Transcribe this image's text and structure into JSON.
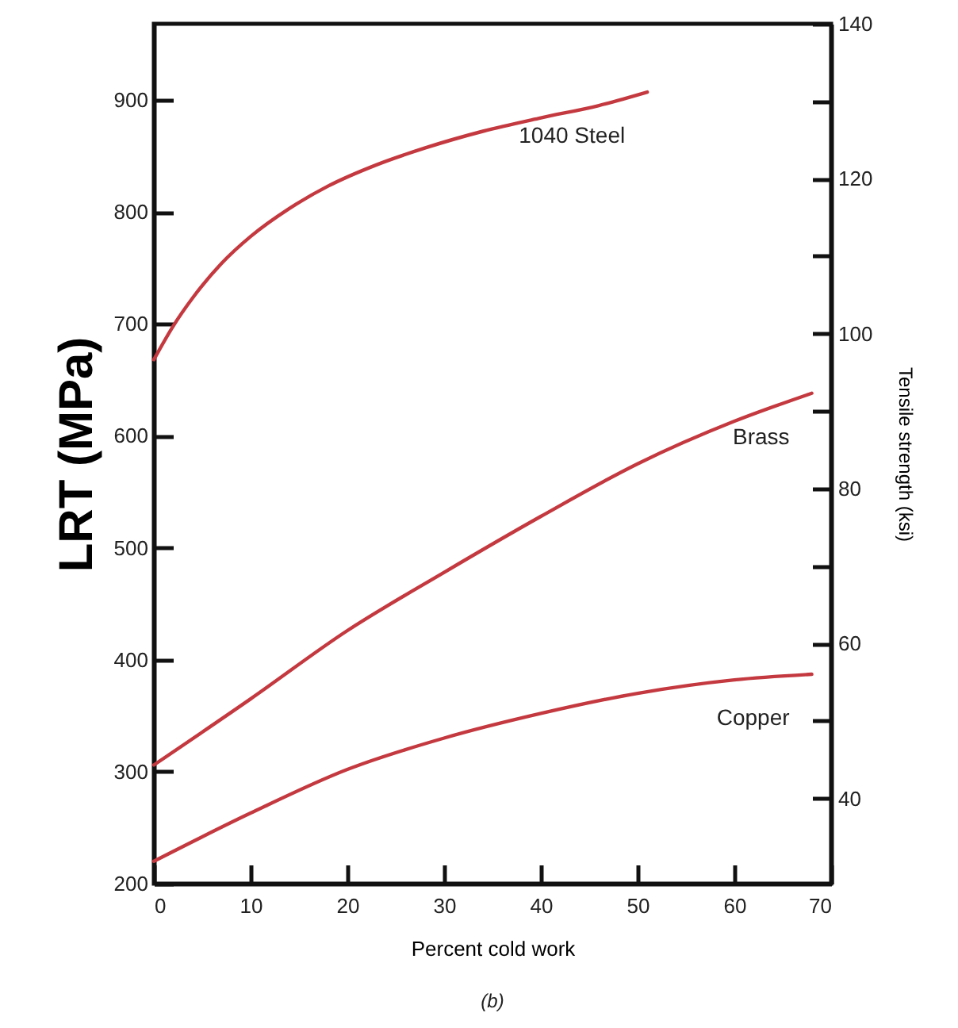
{
  "chart_data": {
    "type": "line",
    "xlabel": "Percent cold work",
    "ylabel": "LRT (MPa)",
    "y2label": "Tensile strength (ksi)",
    "annotations": [
      "(b)"
    ],
    "series": [
      {
        "name": "1040 Steel",
        "color": "#c4393f",
        "x": [
          0,
          2,
          4,
          7,
          10,
          14,
          18,
          23,
          28,
          34,
          40,
          46,
          51
        ],
        "values": [
          668,
          698,
          723,
          754,
          778,
          803,
          823,
          842,
          857,
          872,
          884,
          895,
          907
        ]
      },
      {
        "name": "Brass",
        "color": "#c4393f",
        "x": [
          0,
          10,
          20,
          30,
          40,
          50,
          60,
          68
        ],
        "values": [
          306,
          365,
          426,
          478,
          528,
          575,
          613,
          638
        ]
      },
      {
        "name": "Copper",
        "color": "#c4393f",
        "x": [
          0,
          10,
          20,
          30,
          40,
          50,
          60,
          68
        ],
        "values": [
          220,
          263,
          302,
          330,
          352,
          370,
          382,
          387
        ]
      }
    ],
    "xlim": [
      0,
      70
    ],
    "xticks": [
      0,
      10,
      20,
      30,
      40,
      50,
      60,
      70
    ],
    "ylim": [
      200,
      968
    ],
    "yticks": [
      200,
      300,
      400,
      500,
      600,
      700,
      800,
      900
    ],
    "y2lim": [
      29,
      140
    ],
    "y2ticks": [
      40,
      {
        "value": 50,
        "label": null
      },
      60,
      {
        "value": 70,
        "label": null
      },
      80,
      {
        "value": 90,
        "label": null
      },
      100,
      {
        "value": 110,
        "label": null
      },
      120,
      {
        "value": 130,
        "label": null
      },
      140
    ],
    "line_style": "solid",
    "marker": "none"
  }
}
